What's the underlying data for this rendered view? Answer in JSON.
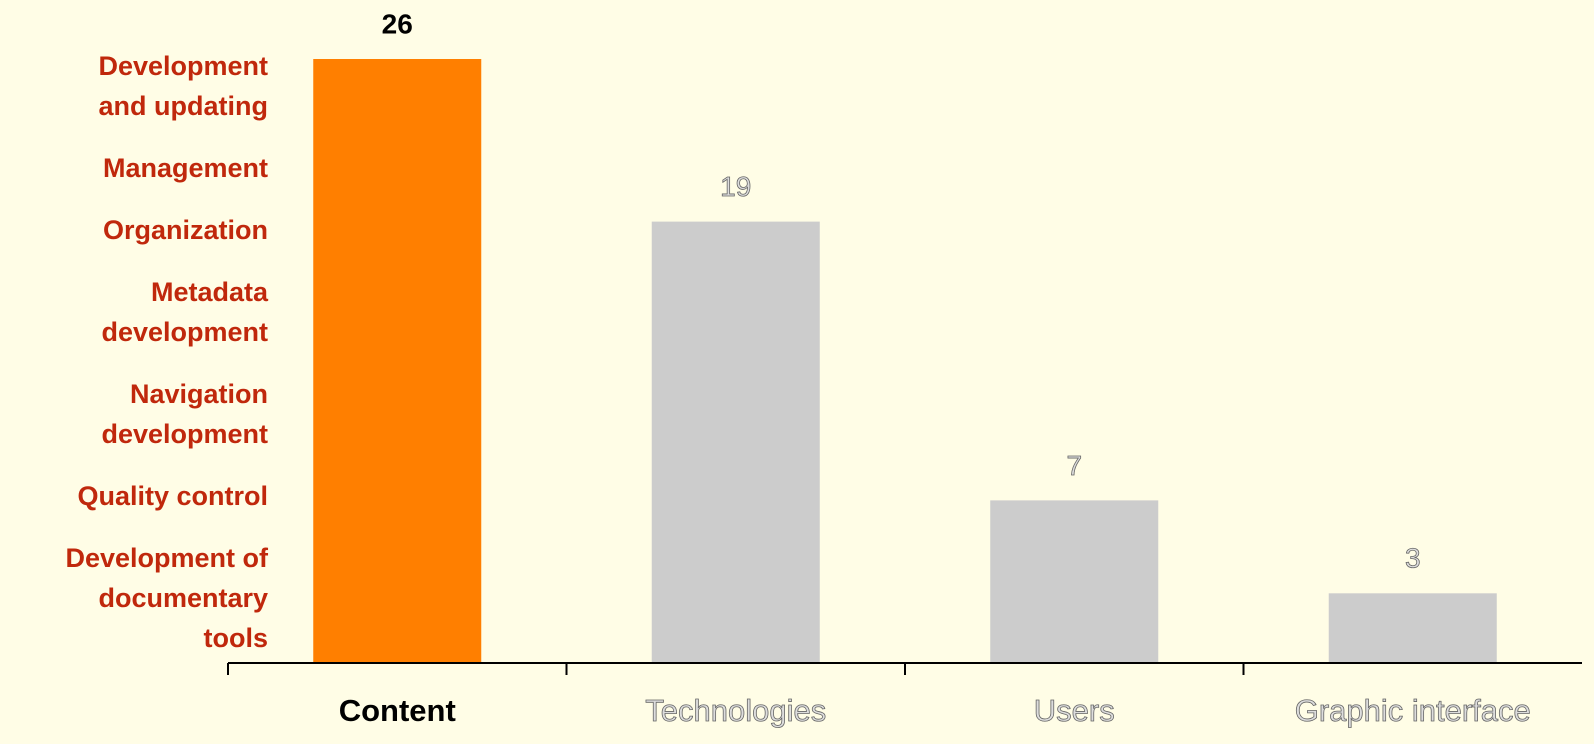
{
  "chart_data": {
    "type": "bar",
    "categories": [
      "Content",
      "Technologies",
      "Users",
      "Graphic interface"
    ],
    "values": [
      26,
      19,
      7,
      3
    ],
    "colors": [
      "#ff7f00",
      "#cccccc",
      "#cccccc",
      "#cccccc"
    ],
    "highlight": 0,
    "annotations": [
      [
        "Development",
        "and updating"
      ],
      [
        "Management"
      ],
      [
        "Organization"
      ],
      [
        "Metadata",
        "development"
      ],
      [
        "Navigation",
        "development"
      ],
      [
        "Quality control"
      ],
      [
        "Development of",
        "documentary",
        "tools"
      ]
    ],
    "annotation_color": "#c0280c"
  }
}
